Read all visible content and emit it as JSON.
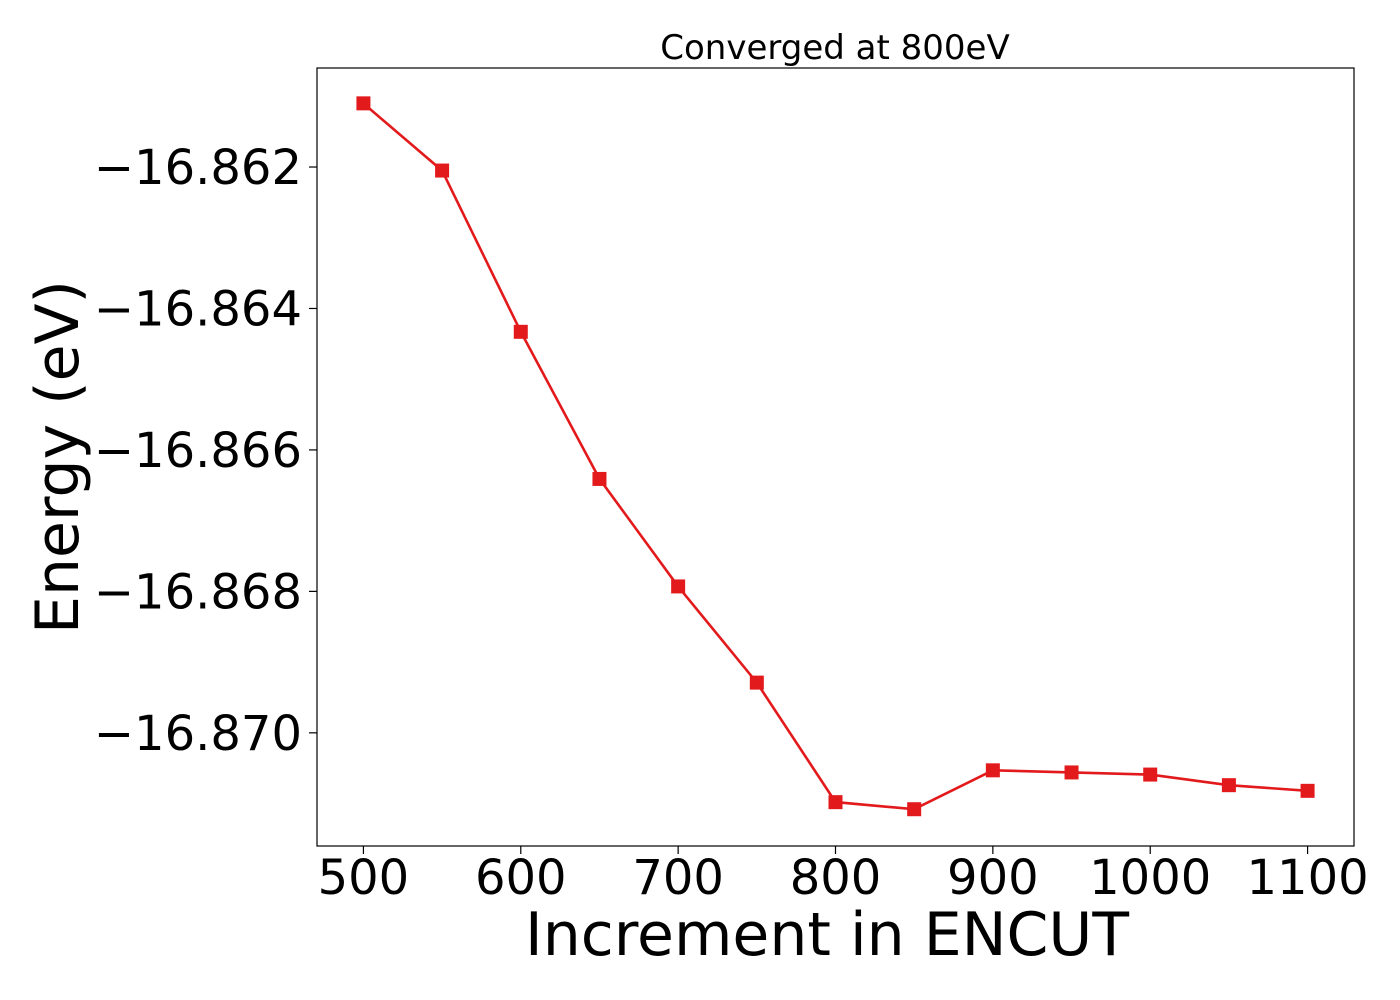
{
  "chart_data": {
    "type": "line",
    "title": "Converged at 800eV",
    "xlabel": "Increment in ENCUT",
    "ylabel": "Energy (eV)",
    "x": [
      500,
      550,
      600,
      650,
      700,
      750,
      800,
      850,
      900,
      950,
      1000,
      1050,
      1100
    ],
    "series": [
      {
        "values": [
          -16.8611,
          -16.86205,
          -16.86433,
          -16.86641,
          -16.86793,
          -16.86929,
          -16.87098,
          -16.87108,
          -16.87053,
          -16.87056,
          -16.87059,
          -16.87074,
          -16.87082
        ],
        "color": "#e31a1c",
        "marker": "square"
      }
    ],
    "xticks": [
      500,
      600,
      700,
      800,
      900,
      1000,
      1100
    ],
    "yticks": [
      -16.862,
      -16.864,
      -16.866,
      -16.868,
      -16.87
    ],
    "ytick_labels": [
      "−16.862",
      "−16.864",
      "−16.866",
      "−16.868",
      "−16.870"
    ],
    "xlim": [
      470.5,
      1129.5
    ],
    "ylim": [
      -16.8716,
      -16.8606
    ],
    "grid": false,
    "legend": "none"
  }
}
